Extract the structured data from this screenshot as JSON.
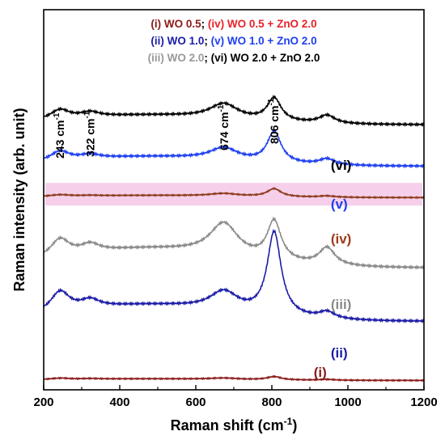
{
  "chart_data": {
    "type": "line",
    "xlabel": "Raman shift (cm",
    "xlabel_sup": "-1",
    "xlabel_end": ")",
    "ylabel": "Raman intensity (arb. unit)",
    "xlim": [
      200,
      1200
    ],
    "x_ticks": [
      "200",
      "400",
      "600",
      "800",
      "1000",
      "1200"
    ],
    "grid": false,
    "y_ticks_shown": false,
    "legend": {
      "placement": "top-center",
      "rows": [
        [
          {
            "text": "(i) WO 0.5",
            "color": "#8b1a1a"
          },
          {
            "text": "; ",
            "color": "#000000"
          },
          {
            "text": "(iv) WO 0.5 + ZnO 2.0",
            "color": "#e8232a"
          }
        ],
        [
          {
            "text": "(ii) WO 1.0",
            "color": "#1c1ca8"
          },
          {
            "text": "; ",
            "color": "#000000"
          },
          {
            "text": "(v) WO 1.0 + ZnO 2.0",
            "color": "#1f3ff0"
          }
        ],
        [
          {
            "text": "(iii) WO 2.0",
            "color": "#999999"
          },
          {
            "text": "; ",
            "color": "#000000"
          },
          {
            "text": "(vi) WO 2.0 + ZnO 2.0",
            "color": "#000000"
          }
        ]
      ]
    },
    "annotations": [
      {
        "text": "243 cm",
        "sup": "-1",
        "x": 243
      },
      {
        "text": "322 cm",
        "sup": "-1",
        "x": 322
      },
      {
        "text": "674 cm",
        "sup": "-1",
        "x": 674
      },
      {
        "text": "806 cm",
        "sup": "-1",
        "x": 806
      }
    ],
    "peak_positions_cm1": [
      243,
      322,
      674,
      806,
      945
    ],
    "series": [
      {
        "name": "(vi)",
        "color": "#000000",
        "label_color": "#000000",
        "label_x": 955,
        "baseline": 9.7,
        "amps": [
          0.35,
          0.18,
          0.55,
          0.85,
          0.3
        ],
        "bg": 0.35
      },
      {
        "name": "(v)",
        "color": "#1f3ff0",
        "label_color": "#1f3ff0",
        "label_x": 955,
        "baseline": 8.15,
        "amps": [
          0.35,
          0.15,
          0.45,
          1.15,
          0.22
        ],
        "bg": 0.35
      },
      {
        "name": "(iv)",
        "color": "#8b3a1a",
        "label_color": "#a03a1a",
        "label_x": 955,
        "baseline": 6.98,
        "amps": [
          0.06,
          0.02,
          0.1,
          0.3,
          0.05
        ],
        "bg": 0.08,
        "highlight": "#f6d0ea"
      },
      {
        "name": "(iii)",
        "color": "#8a8a8a",
        "label_color": "#8a8a8a",
        "label_x": 955,
        "baseline": 4.35,
        "amps": [
          0.65,
          0.3,
          1.2,
          1.45,
          0.65
        ],
        "bg": 0.7
      },
      {
        "name": "(ii)",
        "color": "#1c1ca8",
        "label_color": "#1c1ca8",
        "label_x": 955,
        "baseline": 2.35,
        "amps": [
          0.75,
          0.3,
          0.7,
          3.1,
          0.25
        ],
        "bg": 0.6
      },
      {
        "name": "(i)",
        "color": "#8b1a1a",
        "label_color": "#8b1a1a",
        "label_x": 910,
        "baseline": 0.15,
        "amps": [
          0.05,
          0.02,
          0.05,
          0.12,
          0.03
        ],
        "bg": 0.06
      }
    ]
  }
}
